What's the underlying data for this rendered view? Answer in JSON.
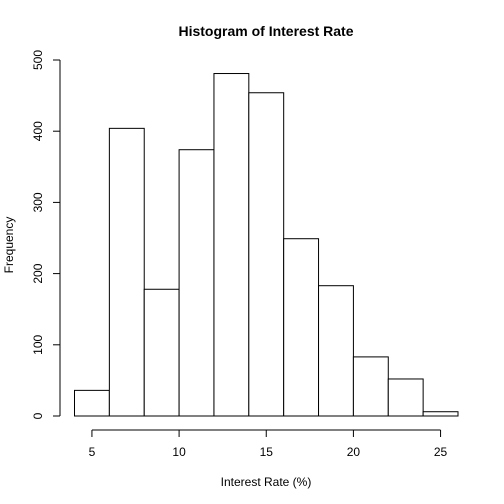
{
  "chart_data": {
    "type": "bar",
    "title": "Histogram of Interest Rate",
    "xlabel": "Interest Rate (%)",
    "ylabel": "Frequency",
    "bins": [
      {
        "start": 4,
        "end": 6,
        "count": 36
      },
      {
        "start": 6,
        "end": 8,
        "count": 404
      },
      {
        "start": 8,
        "end": 10,
        "count": 178
      },
      {
        "start": 10,
        "end": 12,
        "count": 374
      },
      {
        "start": 12,
        "end": 14,
        "count": 481
      },
      {
        "start": 14,
        "end": 16,
        "count": 454
      },
      {
        "start": 16,
        "end": 18,
        "count": 249
      },
      {
        "start": 18,
        "end": 20,
        "count": 183
      },
      {
        "start": 20,
        "end": 22,
        "count": 83
      },
      {
        "start": 22,
        "end": 24,
        "count": 52
      },
      {
        "start": 24,
        "end": 26,
        "count": 6
      }
    ],
    "xlim": [
      4,
      26
    ],
    "ylim": [
      0,
      500
    ],
    "x_ticks": [
      "5",
      "10",
      "15",
      "20",
      "25"
    ],
    "y_ticks": [
      "0",
      "100",
      "200",
      "300",
      "400",
      "500"
    ],
    "grid": false,
    "legend": "none"
  }
}
